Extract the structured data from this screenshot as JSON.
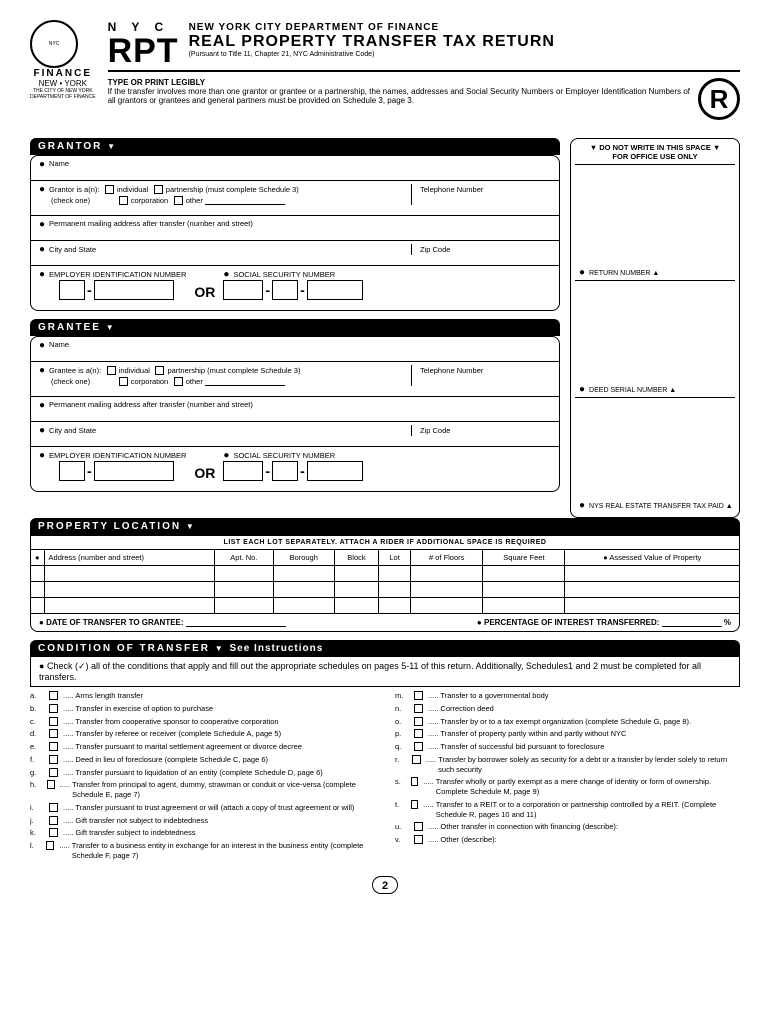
{
  "header": {
    "finance": "FINANCE",
    "newyork": "NEW • YORK",
    "city_tiny1": "THE CITY OF NEW YORK",
    "city_tiny2": "DEPARTMENT OF FINANCE",
    "nyc": "N Y C",
    "rpt": "RPT",
    "dept": "NEW YORK CITY DEPARTMENT OF FINANCE",
    "title": "REAL PROPERTY TRANSFER TAX RETURN",
    "pursuant": "(Pursuant to Title 11, Chapter 21, NYC Administrative Code)",
    "typeprint": "TYPE OR PRINT LEGIBLY",
    "instruction": "If the transfer involves more than one grantor or grantee or a partnership, the names, addresses and Social Security Numbers or Employer Identification Numbers of all grantors or grantees and general partners must be provided on Schedule 3, page 3.",
    "r": "R"
  },
  "grantor": {
    "title": "GRANTOR",
    "name": "Name",
    "is_a": "Grantor is a(n):",
    "check_one": "(check one)",
    "individual": "individual",
    "partnership": "partnership (must complete Schedule 3)",
    "corporation": "corporation",
    "other": "other",
    "telephone": "Telephone Number",
    "address": "Permanent mailing address after transfer (number and street)",
    "city_state": "City and State",
    "zip": "Zip Code",
    "ein": "EMPLOYER IDENTIFICATION NUMBER",
    "ssn": "SOCIAL SECURITY NUMBER",
    "or": "OR"
  },
  "grantee": {
    "title": "GRANTEE",
    "is_a": "Grantee is a(n):"
  },
  "office": {
    "header1": "DO NOT WRITE IN THIS SPACE",
    "header2": "FOR OFFICE USE ONLY",
    "return_num": "RETURN NUMBER ▲",
    "deed_serial": "DEED SERIAL NUMBER ▲",
    "nys_tax": "NYS REAL ESTATE TRANSFER TAX PAID ▲"
  },
  "property": {
    "title": "PROPERTY LOCATION",
    "note": "LIST EACH LOT SEPARATELY. ATTACH A RIDER IF ADDITIONAL SPACE IS REQUIRED",
    "cols": [
      "Address (number and street)",
      "Apt. No.",
      "Borough",
      "Block",
      "Lot",
      "# of Floors",
      "Square Feet",
      "Assessed Value of Property"
    ],
    "date_transfer": "DATE OF TRANSFER TO GRANTEE:",
    "percentage": "PERCENTAGE OF INTEREST TRANSFERRED:",
    "pct_sign": "%"
  },
  "condition": {
    "title": "CONDITION OF TRANSFER",
    "see": "See Instructions",
    "check_text": "Check (✓) all of the conditions that apply and fill out the appropriate schedules on pages 5-11 of this return. Additionally, Schedules1 and 2 must be completed for all transfers.",
    "left": [
      {
        "l": "a.",
        "t": "Arms length transfer"
      },
      {
        "l": "b.",
        "t": "Transfer in exercise of option to purchase"
      },
      {
        "l": "c.",
        "t": "Transfer from cooperative sponsor to cooperative corporation"
      },
      {
        "l": "d.",
        "t": "Transfer by referee or receiver (complete Schedule A, page 5)"
      },
      {
        "l": "e.",
        "t": "Transfer pursuant to marital settlement agreement or divorce decree"
      },
      {
        "l": "f.",
        "t": "Deed in lieu of foreclosure (complete Schedule C, page 6)"
      },
      {
        "l": "g.",
        "t": "Transfer pursuant to liquidation of an entity (complete Schedule D, page 6)"
      },
      {
        "l": "h.",
        "t": "Transfer from principal to agent, dummy, strawman or conduit or vice-versa (complete Schedule E, page 7)"
      },
      {
        "l": "i.",
        "t": "Transfer pursuant to trust agreement or will (attach a copy of trust agreement or will)"
      },
      {
        "l": "j.",
        "t": "Gift transfer not subject to indebtedness"
      },
      {
        "l": "k.",
        "t": "Gift transfer subject to indebtedness"
      },
      {
        "l": "l.",
        "t": "Transfer to a business entity in exchange for an interest in the business entity (complete Schedule F, page 7)"
      }
    ],
    "right": [
      {
        "l": "m.",
        "t": "Transfer to a governmental body"
      },
      {
        "l": "n.",
        "t": "Correction deed"
      },
      {
        "l": "o.",
        "t": "Transfer by or to a tax exempt organization (complete Schedule G, page 8)."
      },
      {
        "l": "p.",
        "t": "Transfer of property partly within and partly without NYC"
      },
      {
        "l": "q.",
        "t": "Transfer of successful bid pursuant to foreclosure"
      },
      {
        "l": "r.",
        "t": "Transfer by borrower solely as security for a debt or a transfer by lender solely to return such security"
      },
      {
        "l": "s.",
        "t": "Transfer wholly or partly exempt as a mere change of identity or form of ownership. Complete Schedule M, page 9)"
      },
      {
        "l": "t.",
        "t": "Transfer to a REIT or to a corporation or partnership controlled by a REIT. (Complete Schedule R, pages 10 and 11)"
      },
      {
        "l": "u.",
        "t": "Other transfer in connection with financing (describe):"
      },
      {
        "l": "v.",
        "t": "Other (describe):"
      }
    ]
  },
  "page": "2"
}
